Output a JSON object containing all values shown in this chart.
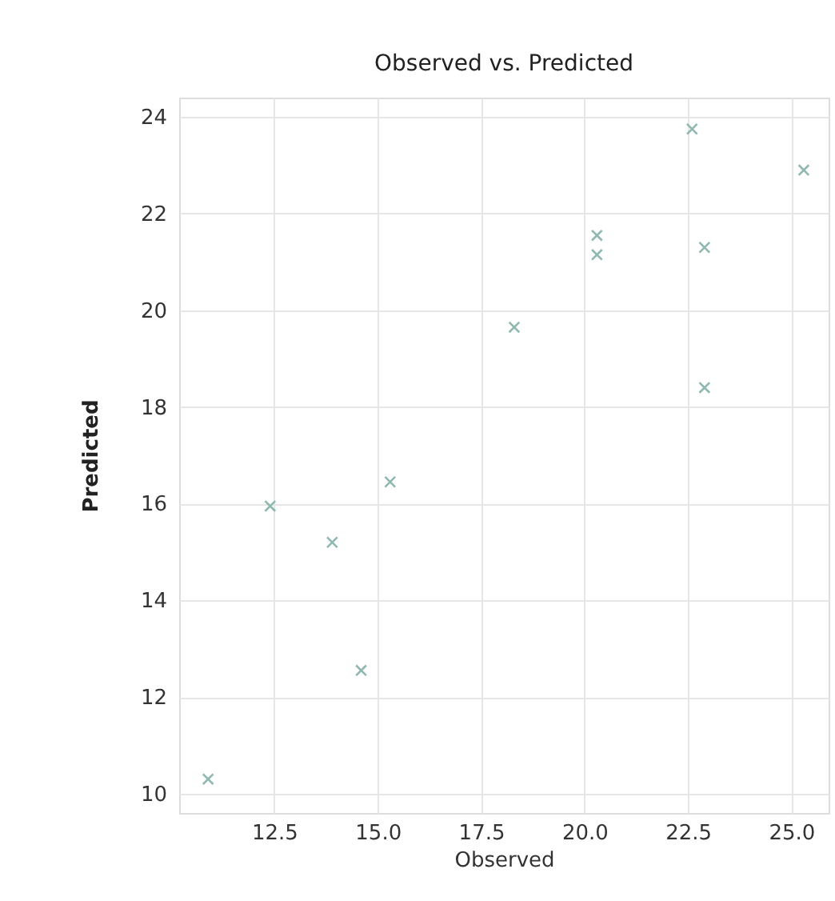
{
  "chart_data": {
    "type": "scatter",
    "title": "Observed vs. Predicted",
    "xlabel": "Observed",
    "ylabel": "Predicted",
    "x": [
      22.6,
      25.3,
      20.3,
      20.3,
      22.9,
      18.3,
      22.9,
      15.3,
      12.4,
      13.9,
      14.6,
      10.9
    ],
    "series": [
      {
        "color": "#8fb8b0",
        "values": [
          23.75,
          22.9,
          21.55,
          21.15,
          21.3,
          19.65,
          18.4,
          16.45,
          15.95,
          15.2,
          12.55,
          10.3
        ]
      }
    ],
    "xlim": [
      10.2,
      25.9
    ],
    "xticks": [
      {
        "value": 12.5,
        "label": "12.5"
      },
      {
        "value": 15,
        "label": "15.0"
      },
      {
        "value": 17.5,
        "label": "17.5"
      },
      {
        "value": 20,
        "label": "20.0"
      },
      {
        "value": 22.5,
        "label": "22.5"
      },
      {
        "value": 25,
        "label": "25.0"
      }
    ],
    "ylim": [
      9.6,
      24.4
    ],
    "yticks": [
      10,
      12,
      14,
      16,
      18,
      20,
      22,
      24
    ],
    "grid": true,
    "marker": "cross"
  }
}
